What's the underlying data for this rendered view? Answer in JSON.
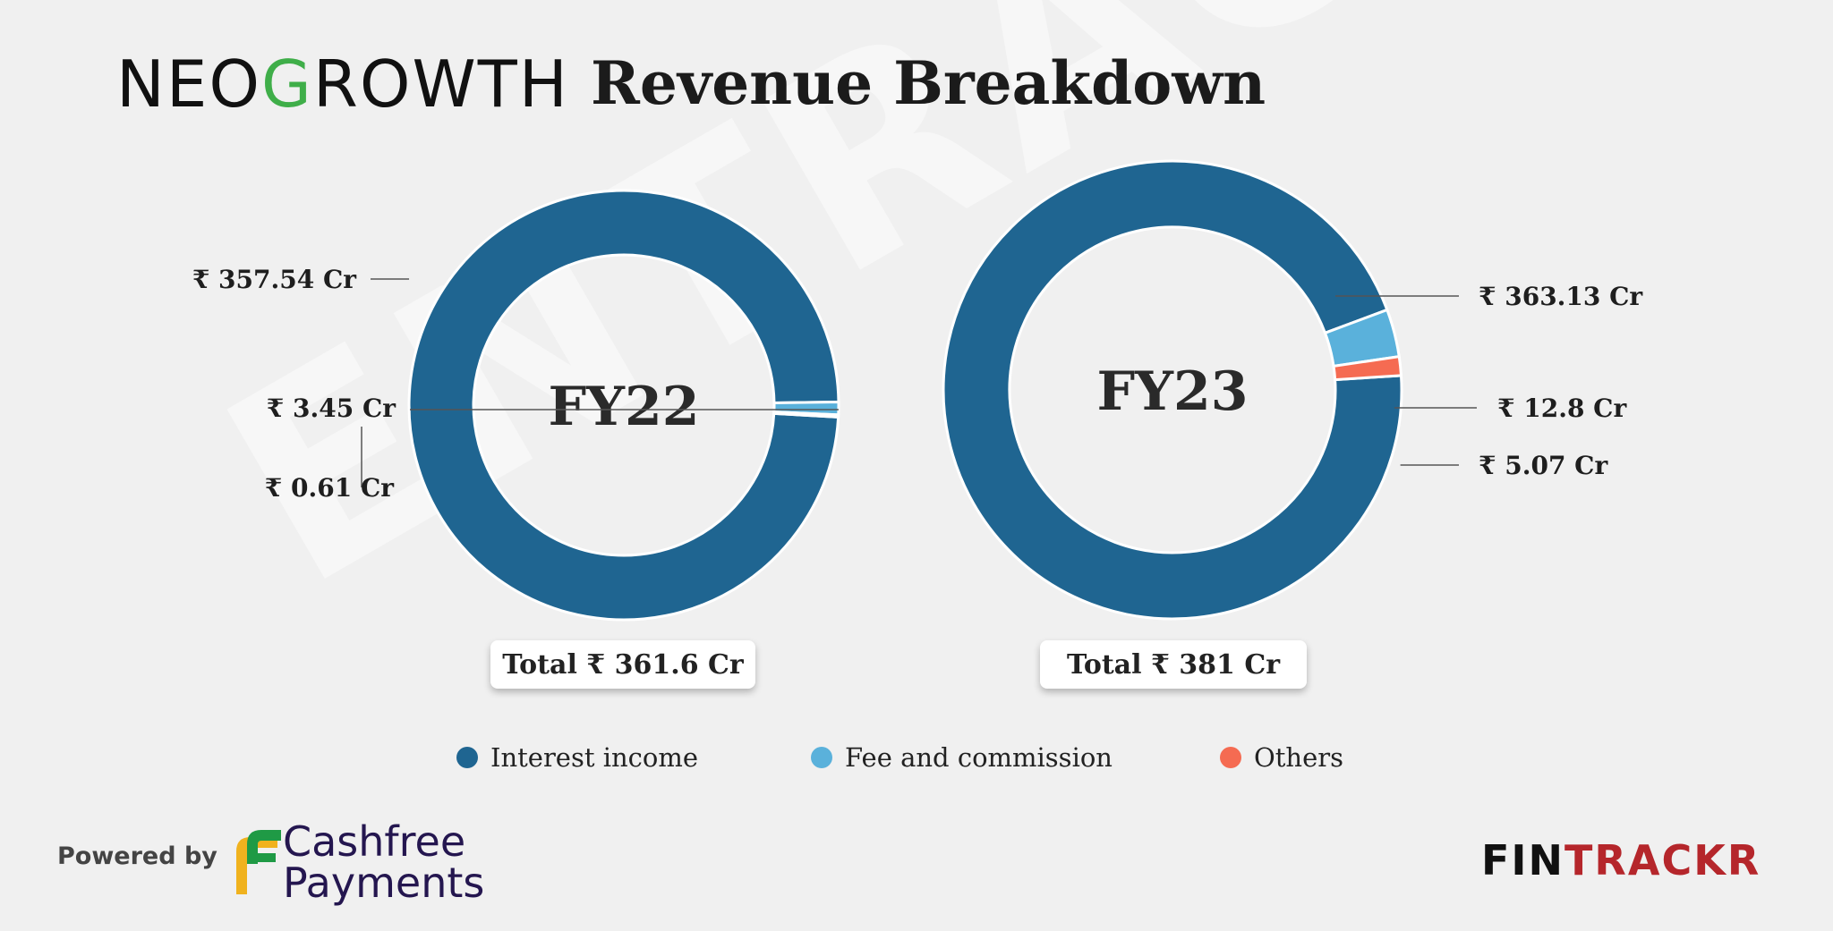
{
  "header": {
    "brand": "NEOGROWTH",
    "title": "Revenue Breakdown"
  },
  "watermark": "ENTRACKR",
  "chart_data": [
    {
      "type": "pie",
      "label": "FY22",
      "total_label": "Total ₹ 361.6 Cr",
      "categories": [
        "Interest income",
        "Fee and commission",
        "Others"
      ],
      "values": [
        357.54,
        3.45,
        0.61
      ],
      "value_labels": [
        "₹ 357.54 Cr",
        "₹ 3.45 Cr",
        "₹ 0.61 Cr"
      ],
      "unit": "₹ Cr"
    },
    {
      "type": "pie",
      "label": "FY23",
      "total_label": "Total ₹ 381 Cr",
      "categories": [
        "Interest income",
        "Fee and commission",
        "Others"
      ],
      "values": [
        363.13,
        12.8,
        5.07
      ],
      "value_labels": [
        "₹ 363.13 Cr",
        "₹ 12.8 Cr",
        "₹ 5.07 Cr"
      ],
      "unit": "₹ Cr"
    }
  ],
  "legend": [
    {
      "label": "Interest income",
      "color": "#1f6591"
    },
    {
      "label": "Fee and commission",
      "color": "#5ab1db"
    },
    {
      "label": "Others",
      "color": "#f56b52"
    }
  ],
  "footer": {
    "powered_by": "Powered by",
    "sponsor_line1": "Cashfree",
    "sponsor_line2": "Payments",
    "publisher_part1": "FIN",
    "publisher_part2": "TRACKR"
  }
}
